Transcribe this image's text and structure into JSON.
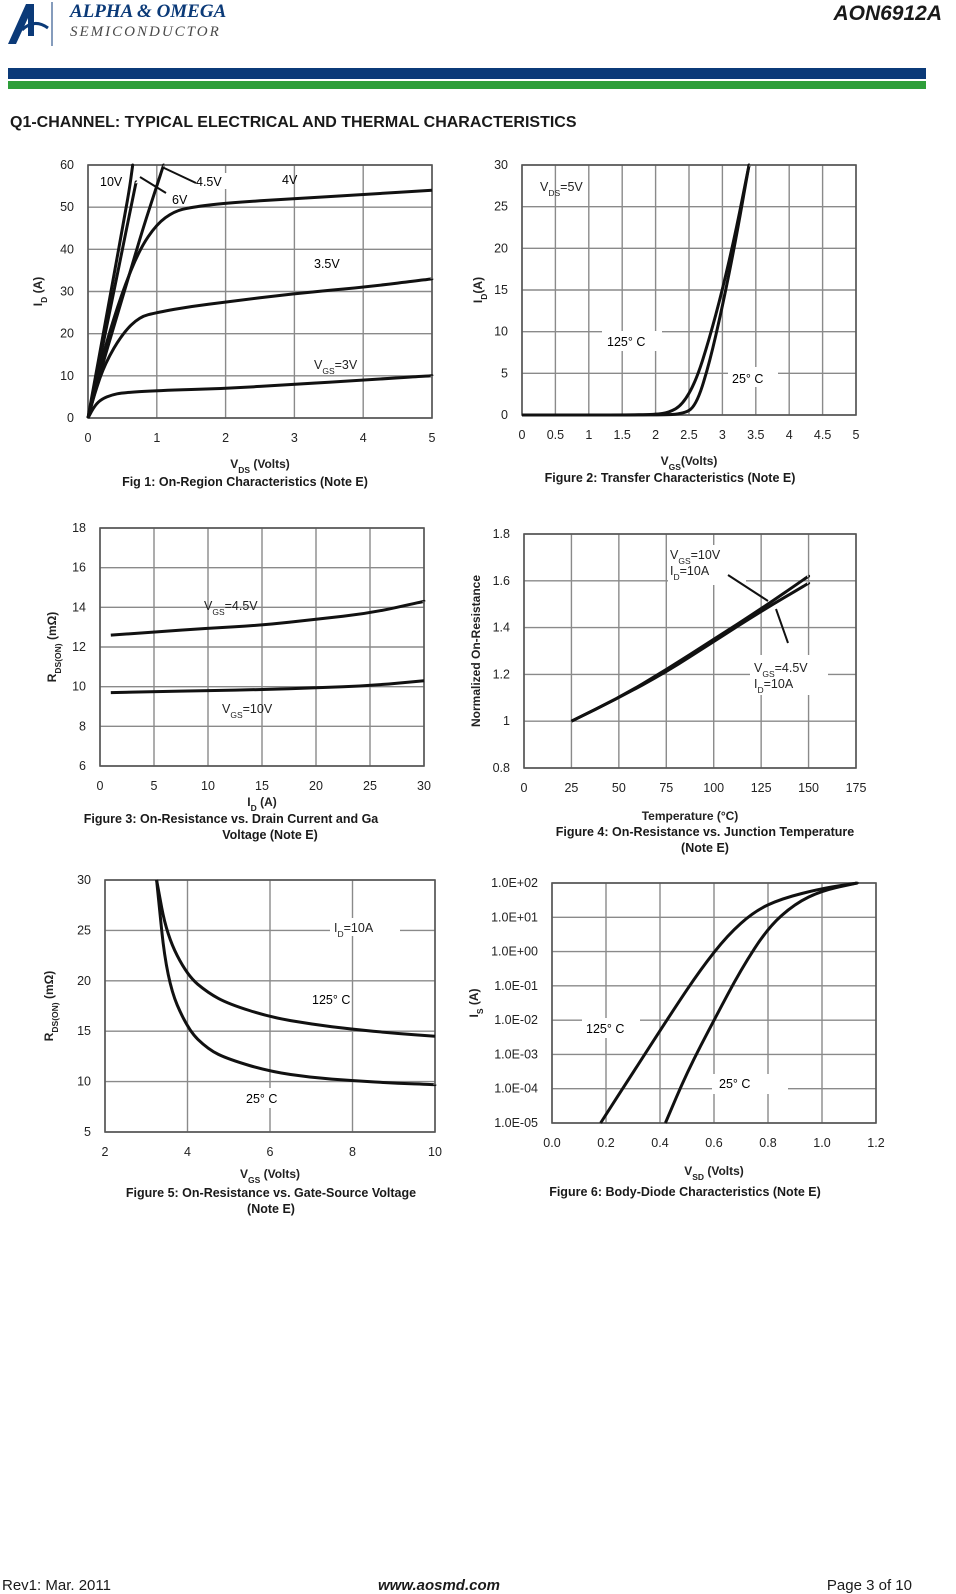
{
  "header": {
    "logo_line1": "ALPHA & OMEGA",
    "logo_line2": "SEMICONDUCTOR",
    "part_number": "AON6912A",
    "section_title": "Q1-CHANNEL: TYPICAL ELECTRICAL AND THERMAL CHARACTERISTICS",
    "colors": {
      "bar_blue": "#0b3a78",
      "bar_green": "#2e9e3a"
    }
  },
  "footer": {
    "revision": "Rev1: Mar. 2011",
    "website": "www.aosmd.com",
    "page": "Page 3 of 10"
  },
  "captions": {
    "fig1": "Fig 1: On-Region Characteristics (Note E)",
    "fig2": "Figure 2: Transfer Characteristics (Note E)",
    "fig3_l1": "Figure 3: On-Resistance vs. Drain Current and Ga",
    "fig3_l2": "Voltage (Note E)",
    "fig4_l1": "Figure 4: On-Resistance vs. Junction Temperature",
    "fig4_l2": "(Note E)",
    "fig5_l1": "Figure 5: On-Resistance vs. Gate-Source Voltage",
    "fig5_l2": "(Note E)",
    "fig6": "Figure 6: Body-Diode Characteristics (Note E)"
  },
  "chart_data": [
    {
      "id": "fig1",
      "type": "line",
      "xlabel": "VDS (Volts)",
      "ylabel": "ID (A)",
      "xlim": [
        0,
        5
      ],
      "ylim": [
        0,
        60
      ],
      "xticks": [
        "0",
        "1",
        "2",
        "3",
        "4",
        "5"
      ],
      "yticks": [
        "0",
        "10",
        "20",
        "30",
        "40",
        "50",
        "60"
      ],
      "grid": true,
      "annotations": [
        "10V",
        "6V",
        "4.5V",
        "4V",
        "3.5V",
        "VGS=3V"
      ],
      "series": [
        {
          "name": "10V",
          "x": [
            0,
            0.1,
            0.2,
            0.3,
            0.4,
            0.5,
            0.6,
            0.65
          ],
          "y": [
            0,
            9,
            18,
            27,
            36,
            45,
            54,
            60
          ]
        },
        {
          "name": "6V",
          "x": [
            0,
            0.1,
            0.2,
            0.3,
            0.4,
            0.5,
            0.6,
            0.7
          ],
          "y": [
            0,
            8,
            16,
            24,
            32,
            40,
            48,
            56
          ]
        },
        {
          "name": "4.5V",
          "x": [
            0,
            0.1,
            0.2,
            0.4,
            0.6,
            0.8,
            1.0,
            1.1
          ],
          "y": [
            0,
            6,
            12,
            23,
            34,
            45,
            55,
            60
          ]
        },
        {
          "name": "4V",
          "x": [
            0,
            0.1,
            0.25,
            0.5,
            0.75,
            1.0,
            1.25,
            1.5,
            2,
            3,
            4,
            5
          ],
          "y": [
            0,
            7,
            17,
            30,
            40,
            46,
            49,
            50,
            51,
            52,
            53,
            54
          ]
        },
        {
          "name": "3.5V",
          "x": [
            0,
            0.1,
            0.25,
            0.5,
            0.75,
            1,
            1.5,
            2,
            3,
            4,
            5
          ],
          "y": [
            0,
            6,
            13,
            20,
            24,
            25,
            26.5,
            27.5,
            29.5,
            31,
            33
          ]
        },
        {
          "name": "VGS=3V",
          "x": [
            0,
            0.1,
            0.2,
            0.35,
            0.5,
            1,
            2,
            3,
            4,
            5
          ],
          "y": [
            0,
            3,
            4.5,
            5.5,
            6,
            6.5,
            7,
            8,
            9,
            10
          ]
        }
      ]
    },
    {
      "id": "fig2",
      "type": "line",
      "xlabel": "VGS(Volts)",
      "ylabel": "ID(A)",
      "xlim": [
        0,
        5
      ],
      "ylim": [
        0,
        30
      ],
      "xticks": [
        "0",
        "0.5",
        "1",
        "1.5",
        "2",
        "2.5",
        "3",
        "3.5",
        "4",
        "4.5",
        "5"
      ],
      "yticks": [
        "0",
        "5",
        "10",
        "15",
        "20",
        "25",
        "30"
      ],
      "grid": true,
      "annotations": [
        "VDS=5V",
        "125° C",
        "25° C"
      ],
      "series": [
        {
          "name": "125° C",
          "x": [
            0,
            1.5,
            2,
            2.2,
            2.4,
            2.6,
            2.8,
            3.0,
            3.2,
            3.4
          ],
          "y": [
            0,
            0,
            0.05,
            0.3,
            1.2,
            4,
            9,
            15,
            22,
            30
          ]
        },
        {
          "name": "25° C",
          "x": [
            0,
            2,
            2.4,
            2.6,
            2.8,
            3.0,
            3.2,
            3.4
          ],
          "y": [
            0,
            0,
            0.1,
            1,
            6,
            13,
            21,
            30
          ]
        }
      ]
    },
    {
      "id": "fig3",
      "type": "line",
      "xlabel": "ID (A)",
      "ylabel": "RDS(ON) (mΩ)",
      "xlim": [
        0,
        30
      ],
      "ylim": [
        6,
        18
      ],
      "xticks": [
        "0",
        "5",
        "10",
        "15",
        "20",
        "25",
        "30"
      ],
      "yticks": [
        "6",
        "8",
        "10",
        "12",
        "14",
        "16",
        "18"
      ],
      "grid": true,
      "annotations": [
        "VGS=4.5V",
        "VGS=10V"
      ],
      "series": [
        {
          "name": "VGS=4.5V",
          "x": [
            1,
            5,
            10,
            15,
            20,
            25,
            30
          ],
          "y": [
            12.6,
            12.75,
            12.95,
            13.1,
            13.4,
            13.7,
            14.3
          ]
        },
        {
          "name": "VGS=10V",
          "x": [
            1,
            5,
            10,
            15,
            20,
            25,
            30
          ],
          "y": [
            9.7,
            9.75,
            9.8,
            9.85,
            9.95,
            10.05,
            10.3
          ]
        }
      ]
    },
    {
      "id": "fig4",
      "type": "line",
      "xlabel": "Temperature (°C)",
      "ylabel": "Normalized On-Resistance",
      "xlim": [
        0,
        175
      ],
      "ylim": [
        0.8,
        1.8
      ],
      "xticks": [
        "0",
        "25",
        "50",
        "75",
        "100",
        "125",
        "150",
        "175"
      ],
      "yticks": [
        "0.8",
        "1",
        "1.2",
        "1.4",
        "1.6",
        "1.8"
      ],
      "grid": true,
      "annotations": [
        "VGS=10V",
        "ID=10A",
        "VGS=4.5V",
        "ID=10A"
      ],
      "series": [
        {
          "name": "VGS=10V ID=10A",
          "x": [
            25,
            50,
            75,
            100,
            125,
            150
          ],
          "y": [
            1.0,
            1.1,
            1.22,
            1.35,
            1.48,
            1.62
          ]
        },
        {
          "name": "VGS=4.5V ID=10A",
          "x": [
            25,
            50,
            75,
            100,
            125,
            150
          ],
          "y": [
            1.0,
            1.1,
            1.21,
            1.34,
            1.47,
            1.59
          ]
        }
      ]
    },
    {
      "id": "fig5",
      "type": "line",
      "xlabel": "VGS (Volts)",
      "ylabel": "RDS(ON) (mΩ)",
      "xlim": [
        2,
        10
      ],
      "ylim": [
        5,
        30
      ],
      "xticks": [
        "2",
        "4",
        "6",
        "8",
        "10"
      ],
      "yticks": [
        "5",
        "10",
        "15",
        "20",
        "25",
        "30"
      ],
      "grid": true,
      "annotations": [
        "ID=10A",
        "125° C",
        "25° C"
      ],
      "series": [
        {
          "name": "125° C",
          "x": [
            3.25,
            3.5,
            4,
            4.5,
            5,
            6,
            7,
            8,
            9,
            10
          ],
          "y": [
            30,
            24.5,
            20.5,
            18.8,
            17.7,
            16.4,
            15.7,
            15.2,
            14.8,
            14.5
          ]
        },
        {
          "name": "25° C",
          "x": [
            3.25,
            3.5,
            4,
            4.5,
            5,
            6,
            7,
            8,
            9,
            10
          ],
          "y": [
            30,
            20,
            15.2,
            13.2,
            12.2,
            11,
            10.4,
            10.1,
            9.85,
            9.7
          ]
        }
      ]
    },
    {
      "id": "fig6",
      "type": "line",
      "xlabel": "VSD (Volts)",
      "ylabel": "IS (A)",
      "xlim": [
        0,
        1.2
      ],
      "yscale": "log",
      "ylim": [
        1e-05,
        100
      ],
      "xticks": [
        "0.0",
        "0.2",
        "0.4",
        "0.6",
        "0.8",
        "1.0",
        "1.2"
      ],
      "yticks": [
        "1.0E+02",
        "1.0E+01",
        "1.0E+00",
        "1.0E-01",
        "1.0E-02",
        "1.0E-03",
        "1.0E-04",
        "1.0E-05"
      ],
      "grid": true,
      "annotations": [
        "125° C",
        "25° C"
      ],
      "series": [
        {
          "name": "125° C",
          "x": [
            0.18,
            0.3,
            0.45,
            0.55,
            0.65,
            0.75,
            0.85,
            1.0,
            1.13
          ],
          "y": [
            1e-05,
            0.0003,
            0.02,
            0.3,
            3,
            15,
            35,
            70,
            100
          ]
        },
        {
          "name": "25° C",
          "x": [
            0.42,
            0.5,
            0.6,
            0.7,
            0.8,
            0.9,
            1.0,
            1.13
          ],
          "y": [
            1e-05,
            0.0003,
            0.01,
            0.3,
            5,
            25,
            60,
            100
          ]
        }
      ]
    }
  ]
}
